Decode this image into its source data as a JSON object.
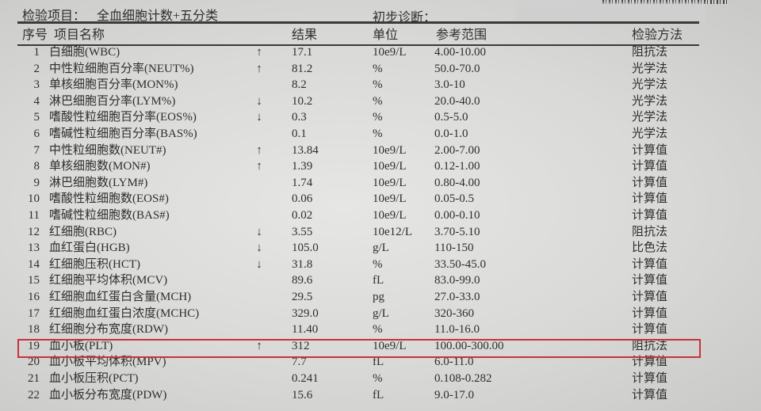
{
  "header": {
    "test_item_label": "检验项目：",
    "test_item_value": "全血细胞计数+五分类",
    "diagnosis_label": "初步诊断："
  },
  "columns": {
    "index": "序号",
    "name": "项目名称",
    "result": "结果",
    "unit": "单位",
    "range": "参考范围",
    "method": "检验方法"
  },
  "flag_icons": {
    "up": "↑",
    "down": "↓"
  },
  "highlight_color": "#c8323c",
  "highlighted_row": 19,
  "rows": [
    {
      "idx": "1",
      "name": "白细胞(WBC)",
      "flag": "↑",
      "result": "17.1",
      "unit": "10e9/L",
      "range": "4.00-10.00",
      "method": "阻抗法"
    },
    {
      "idx": "2",
      "name": "中性粒细胞百分率(NEUT%)",
      "flag": "↑",
      "result": "81.2",
      "unit": "%",
      "range": "50.0-70.0",
      "method": "光学法"
    },
    {
      "idx": "3",
      "name": "单核细胞百分率(MON%)",
      "flag": "",
      "result": "8.2",
      "unit": "%",
      "range": "3.0-10",
      "method": "光学法"
    },
    {
      "idx": "4",
      "name": "淋巴细胞百分率(LYM%)",
      "flag": "↓",
      "result": "10.2",
      "unit": "%",
      "range": "20.0-40.0",
      "method": "光学法"
    },
    {
      "idx": "5",
      "name": "嗜酸性粒细胞百分率(EOS%)",
      "flag": "↓",
      "result": "0.3",
      "unit": "%",
      "range": "0.5-5.0",
      "method": "光学法"
    },
    {
      "idx": "6",
      "name": "嗜碱性粒细胞百分率(BAS%)",
      "flag": "",
      "result": "0.1",
      "unit": "%",
      "range": "0.0-1.0",
      "method": "光学法"
    },
    {
      "idx": "7",
      "name": "中性粒细胞数(NEUT#)",
      "flag": "↑",
      "result": "13.84",
      "unit": "10e9/L",
      "range": "2.00-7.00",
      "method": "计算值"
    },
    {
      "idx": "8",
      "name": "单核细胞数(MON#)",
      "flag": "↑",
      "result": "1.39",
      "unit": "10e9/L",
      "range": "0.12-1.00",
      "method": "计算值"
    },
    {
      "idx": "9",
      "name": "淋巴细胞数(LYM#)",
      "flag": "",
      "result": "1.74",
      "unit": "10e9/L",
      "range": "0.80-4.00",
      "method": "计算值"
    },
    {
      "idx": "10",
      "name": "嗜酸性粒细胞数(EOS#)",
      "flag": "",
      "result": "0.06",
      "unit": "10e9/L",
      "range": "0.05-0.5",
      "method": "计算值"
    },
    {
      "idx": "11",
      "name": "嗜碱性粒细胞数(BAS#)",
      "flag": "",
      "result": "0.02",
      "unit": "10e9/L",
      "range": "0.00-0.10",
      "method": "计算值"
    },
    {
      "idx": "12",
      "name": "红细胞(RBC)",
      "flag": "↓",
      "result": "3.55",
      "unit": "10e12/L",
      "range": "3.70-5.10",
      "method": "阻抗法"
    },
    {
      "idx": "13",
      "name": "血红蛋白(HGB)",
      "flag": "↓",
      "result": "105.0",
      "unit": "g/L",
      "range": "110-150",
      "method": "比色法"
    },
    {
      "idx": "14",
      "name": "红细胞压积(HCT)",
      "flag": "↓",
      "result": "31.8",
      "unit": "%",
      "range": "33.50-45.0",
      "method": "计算值"
    },
    {
      "idx": "15",
      "name": "红细胞平均体积(MCV)",
      "flag": "",
      "result": "89.6",
      "unit": "fL",
      "range": "83.0-99.0",
      "method": "计算值"
    },
    {
      "idx": "16",
      "name": "红细胞血红蛋白含量(MCH)",
      "flag": "",
      "result": "29.5",
      "unit": "pg",
      "range": "27.0-33.0",
      "method": "计算值"
    },
    {
      "idx": "17",
      "name": "红细胞血红蛋白浓度(MCHC)",
      "flag": "",
      "result": "329.0",
      "unit": "g/L",
      "range": "320-360",
      "method": "计算值"
    },
    {
      "idx": "18",
      "name": "红细胞分布宽度(RDW)",
      "flag": "",
      "result": "11.40",
      "unit": "%",
      "range": "11.0-16.0",
      "method": "计算值"
    },
    {
      "idx": "19",
      "name": "血小板(PLT)",
      "flag": "↑",
      "result": "312",
      "unit": "10e9/L",
      "range": "100.00-300.00",
      "method": "阻抗法"
    },
    {
      "idx": "20",
      "name": "血小板平均体积(MPV)",
      "flag": "",
      "result": "7.7",
      "unit": "fL",
      "range": "6.0-11.0",
      "method": "计算值"
    },
    {
      "idx": "21",
      "name": "血小板压积(PCT)",
      "flag": "",
      "result": "0.241",
      "unit": "%",
      "range": "0.108-0.282",
      "method": "计算值"
    },
    {
      "idx": "22",
      "name": "血小板分布宽度(PDW)",
      "flag": "",
      "result": "15.6",
      "unit": "fL",
      "range": "9.0-17.0",
      "method": "计算值"
    }
  ]
}
